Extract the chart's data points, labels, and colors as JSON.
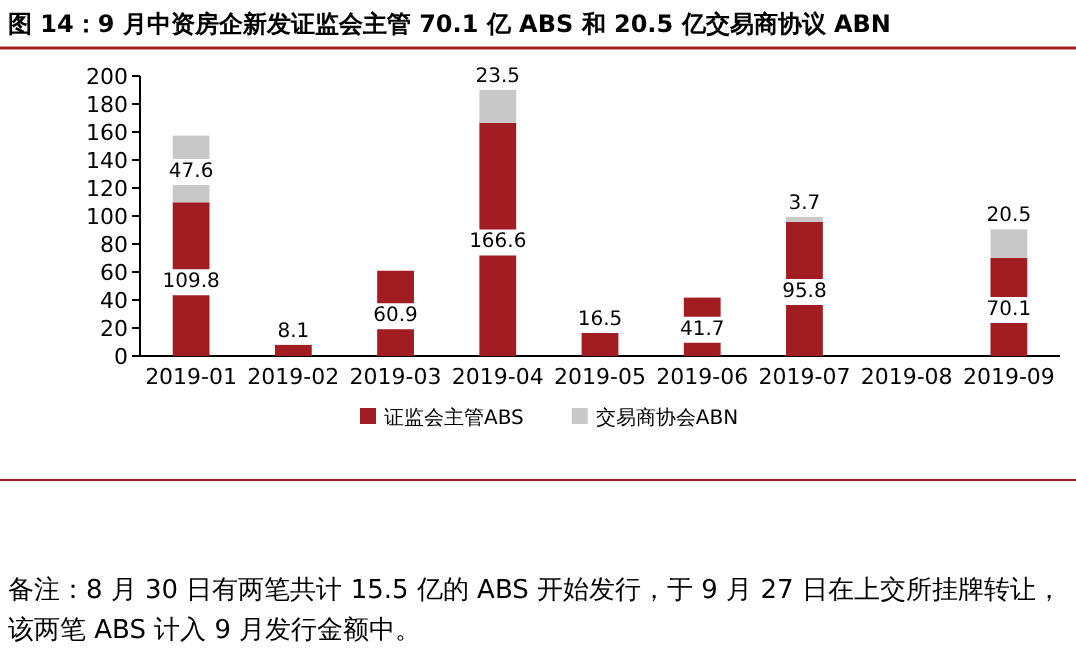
{
  "chart_data": {
    "type": "bar",
    "title": "图 14：9 月中资房企新发证监会主管 70.1 亿 ABS 和 20.5 亿交易商协议 ABN",
    "categories": [
      "2019-01",
      "2019-02",
      "2019-03",
      "2019-04",
      "2019-05",
      "2019-06",
      "2019-07",
      "2019-08",
      "2019-09"
    ],
    "series": [
      {
        "name": "证监会主管ABS",
        "color": "#a21d21",
        "values": [
          109.8,
          8.1,
          60.9,
          166.6,
          16.5,
          41.7,
          95.8,
          null,
          70.1
        ]
      },
      {
        "name": "交易商协会ABN",
        "color": "#c8c8c8",
        "values": [
          47.6,
          null,
          null,
          23.5,
          null,
          null,
          3.7,
          null,
          20.5
        ]
      }
    ],
    "stacked": true,
    "data_labels": true,
    "ylim": [
      0,
      200
    ],
    "yticks": [
      0,
      20,
      40,
      60,
      80,
      100,
      120,
      140,
      160,
      180,
      200
    ],
    "legend": "bottom",
    "annotations": [
      "备注：8 月 30 日有两笔共计 15.5 亿的 ABS 开始发行，于 9 月 27 日在上交所挂牌转让，该两笔 ABS 计入 9 月发行金额中。"
    ]
  }
}
